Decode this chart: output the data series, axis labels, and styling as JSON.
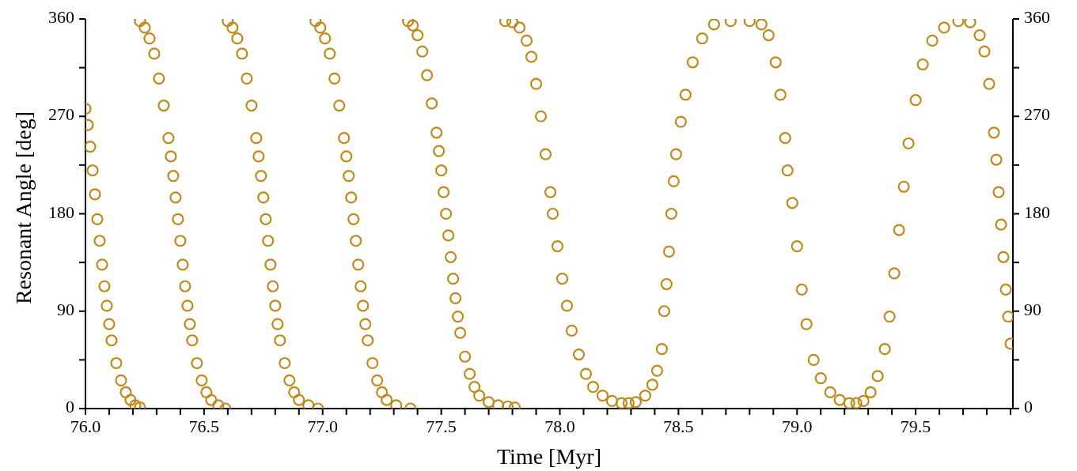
{
  "chart_data": {
    "type": "scatter",
    "xlabel": "Time [Myr]",
    "ylabel": "Resonant Angle [deg]",
    "marker": "circle",
    "xlim": [
      76,
      79.91
    ],
    "xticks": [
      {
        "value": 76,
        "label": "76.0"
      },
      {
        "value": 76.1,
        "label": null
      },
      {
        "value": 76.2,
        "label": null
      },
      {
        "value": 76.3,
        "label": null
      },
      {
        "value": 76.4,
        "label": null
      },
      76.5,
      {
        "value": 76.6,
        "label": null
      },
      {
        "value": 76.7,
        "label": null
      },
      {
        "value": 76.8,
        "label": null
      },
      {
        "value": 76.9,
        "label": null
      },
      {
        "value": 77,
        "label": "77.0"
      },
      {
        "value": 77.1,
        "label": null
      },
      {
        "value": 77.2,
        "label": null
      },
      {
        "value": 77.3,
        "label": null
      },
      {
        "value": 77.4,
        "label": null
      },
      77.5,
      {
        "value": 77.6,
        "label": null
      },
      {
        "value": 77.7,
        "label": null
      },
      {
        "value": 77.8,
        "label": null
      },
      {
        "value": 77.9,
        "label": null
      },
      {
        "value": 78,
        "label": "78.0"
      },
      {
        "value": 78.1,
        "label": null
      },
      {
        "value": 78.2,
        "label": null
      },
      {
        "value": 78.3,
        "label": null
      },
      {
        "value": 78.4,
        "label": null
      },
      78.5,
      {
        "value": 78.6,
        "label": null
      },
      {
        "value": 78.7,
        "label": null
      },
      {
        "value": 78.8,
        "label": null
      },
      {
        "value": 78.9,
        "label": null
      },
      {
        "value": 79,
        "label": "79.0"
      },
      {
        "value": 79.1,
        "label": null
      },
      {
        "value": 79.2,
        "label": null
      },
      {
        "value": 79.3,
        "label": null
      },
      {
        "value": 79.4,
        "label": null
      },
      79.5,
      {
        "value": 79.6,
        "label": null
      },
      {
        "value": 79.7,
        "label": null
      },
      {
        "value": 79.8,
        "label": null
      },
      {
        "value": 79.9,
        "label": null
      }
    ],
    "ylim": [
      0,
      360
    ],
    "yticks": [
      0,
      {
        "value": 45,
        "label": null
      },
      90,
      {
        "value": 135,
        "label": null
      },
      180,
      {
        "value": 225,
        "label": null
      },
      270,
      {
        "value": 315,
        "label": null
      },
      360
    ],
    "y2lim": [
      0,
      360
    ],
    "y2ticks": [
      0,
      {
        "value": 45,
        "label": null
      },
      90,
      {
        "value": 135,
        "label": null
      },
      180,
      {
        "value": 225,
        "label": null
      },
      270,
      {
        "value": 315,
        "label": null
      },
      360
    ],
    "series": [
      {
        "color": "#bf8a1a",
        "x": [
          76.0,
          76.01,
          76.02,
          76.03,
          76.04,
          76.05,
          76.06,
          76.07,
          76.08,
          76.09,
          76.1,
          76.11,
          76.13,
          76.15,
          76.17,
          76.19,
          76.21,
          76.23,
          76.23,
          76.25,
          76.27,
          76.29,
          76.31,
          76.33,
          76.35,
          76.36,
          76.37,
          76.38,
          76.39,
          76.4,
          76.41,
          76.42,
          76.43,
          76.44,
          76.45,
          76.47,
          76.49,
          76.51,
          76.53,
          76.56,
          76.59,
          76.6,
          76.62,
          76.64,
          76.66,
          76.68,
          76.7,
          76.72,
          76.73,
          76.74,
          76.75,
          76.76,
          76.77,
          76.78,
          76.79,
          76.8,
          76.81,
          76.82,
          76.84,
          76.86,
          76.88,
          76.9,
          76.94,
          76.98,
          76.97,
          76.99,
          77.01,
          77.03,
          77.05,
          77.07,
          77.09,
          77.1,
          77.11,
          77.12,
          77.13,
          77.14,
          77.15,
          77.16,
          77.17,
          77.18,
          77.19,
          77.21,
          77.23,
          77.25,
          77.27,
          77.31,
          77.37,
          77.36,
          77.38,
          77.4,
          77.42,
          77.44,
          77.46,
          77.48,
          77.49,
          77.5,
          77.51,
          77.52,
          77.53,
          77.54,
          77.55,
          77.56,
          77.57,
          77.58,
          77.6,
          77.62,
          77.64,
          77.66,
          77.7,
          77.74,
          77.78,
          77.81,
          77.77,
          77.8,
          77.83,
          77.86,
          77.88,
          77.9,
          77.92,
          77.94,
          77.96,
          77.97,
          77.99,
          78.01,
          78.03,
          78.05,
          78.08,
          78.11,
          78.14,
          78.18,
          78.22,
          78.26,
          78.29,
          78.32,
          78.36,
          78.39,
          78.41,
          78.43,
          78.44,
          78.45,
          78.46,
          78.47,
          78.48,
          78.49,
          78.51,
          78.53,
          78.56,
          78.6,
          78.65,
          78.72,
          78.8,
          78.85,
          78.88,
          78.91,
          78.93,
          78.95,
          78.96,
          78.98,
          79.0,
          79.02,
          79.04,
          79.07,
          79.1,
          79.14,
          79.18,
          79.22,
          79.25,
          79.28,
          79.31,
          79.34,
          79.37,
          79.39,
          79.41,
          79.43,
          79.45,
          79.47,
          79.5,
          79.53,
          79.57,
          79.62,
          79.68,
          79.73,
          79.77,
          79.79,
          79.81,
          79.83,
          79.84,
          79.85,
          79.86,
          79.87,
          79.88,
          79.89,
          79.9
        ],
        "values": [
          277,
          262,
          242,
          220,
          198,
          175,
          155,
          133,
          113,
          95,
          78,
          63,
          42,
          26,
          15,
          8,
          3,
          1,
          358,
          352,
          342,
          328,
          305,
          280,
          250,
          233,
          215,
          195,
          175,
          155,
          133,
          113,
          95,
          78,
          63,
          42,
          26,
          15,
          8,
          3,
          0,
          358,
          352,
          342,
          328,
          305,
          280,
          250,
          233,
          215,
          195,
          175,
          155,
          133,
          113,
          95,
          78,
          63,
          42,
          26,
          15,
          8,
          3,
          0,
          358,
          352,
          342,
          328,
          305,
          280,
          250,
          233,
          215,
          195,
          175,
          155,
          133,
          113,
          95,
          78,
          63,
          42,
          26,
          15,
          8,
          3,
          0,
          358,
          354,
          345,
          330,
          308,
          282,
          255,
          238,
          220,
          200,
          180,
          160,
          140,
          120,
          102,
          85,
          70,
          48,
          32,
          20,
          12,
          6,
          3,
          2,
          1,
          358,
          357,
          352,
          340,
          325,
          300,
          270,
          235,
          200,
          180,
          150,
          120,
          95,
          72,
          50,
          32,
          20,
          12,
          7,
          5,
          5,
          6,
          12,
          22,
          35,
          55,
          90,
          115,
          145,
          180,
          210,
          235,
          265,
          290,
          320,
          342,
          355,
          358,
          358,
          355,
          345,
          320,
          290,
          250,
          220,
          190,
          150,
          110,
          78,
          45,
          28,
          15,
          8,
          5,
          5,
          7,
          15,
          30,
          55,
          85,
          125,
          165,
          205,
          245,
          285,
          318,
          340,
          352,
          358,
          357,
          345,
          330,
          300,
          255,
          230,
          200,
          170,
          140,
          110,
          85,
          60
        ]
      }
    ]
  }
}
